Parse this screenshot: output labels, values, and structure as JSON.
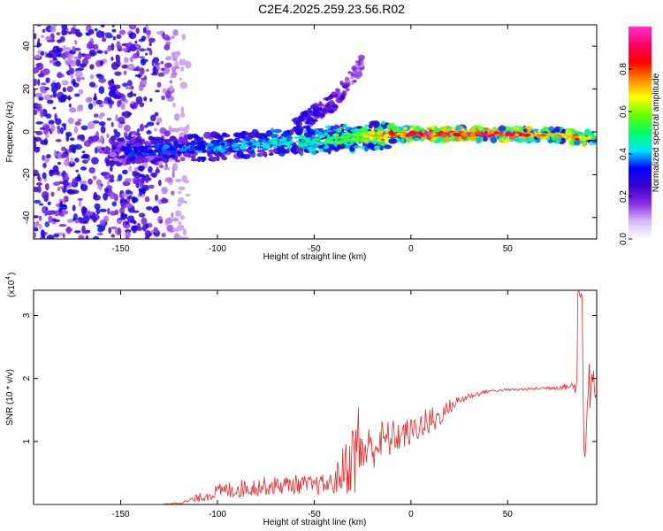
{
  "title": "C2E4.2025.259.23.56.R02",
  "chart_data": [
    {
      "type": "heatmap",
      "xlabel": "Height of straight line (km)",
      "ylabel": "Frequency (Hz)",
      "xlim": [
        -195,
        96
      ],
      "ylim": [
        -50,
        50
      ],
      "xticks": [
        -150,
        -100,
        -50,
        0,
        50
      ],
      "yticks": [
        -40,
        -20,
        0,
        20,
        40
      ],
      "colorbar": {
        "label": "Normalized spectral amplitude",
        "range": [
          0,
          1
        ],
        "ticks": [
          0.0,
          0.2,
          0.4,
          0.6,
          0.8
        ],
        "colormap": [
          "#ffffff",
          "#d8b8f8",
          "#8a2be2",
          "#3a00d0",
          "#0000ff",
          "#00e5ff",
          "#00ff66",
          "#66ff00",
          "#ffff00",
          "#ff8800",
          "#ff0000",
          "#ff0066",
          "#ff33cc"
        ]
      },
      "features": [
        {
          "name": "main-band",
          "x": [
            -150,
            -100,
            -50,
            -20,
            0,
            25,
            50,
            75,
            90,
            95
          ],
          "y": [
            -9,
            -7,
            -4,
            -2,
            -1,
            -1,
            -1,
            -1.5,
            -3,
            -2
          ],
          "amplitude": [
            0.35,
            0.4,
            0.5,
            0.7,
            0.95,
            0.95,
            0.95,
            0.7,
            0.85,
            0.5
          ]
        },
        {
          "name": "upper-streak",
          "x": [
            -60,
            -40,
            -25
          ],
          "y": [
            2,
            14,
            32
          ],
          "amplitude": [
            0.3,
            0.25,
            0.15
          ]
        },
        {
          "name": "noise-region",
          "x": [
            -195,
            -125
          ],
          "y": [
            -50,
            50
          ],
          "amplitude": [
            0.1,
            0.35
          ]
        }
      ]
    },
    {
      "type": "line",
      "xlabel": "Height of straight line (km)",
      "ylabel": "SNR (10 * v/v)",
      "yunit_label": "(x10",
      "yunit_exp": "4",
      "yunit_close": ")",
      "xlim": [
        -195,
        96
      ],
      "ylim": [
        0,
        3.4
      ],
      "xticks": [
        -150,
        -100,
        -50,
        0,
        50
      ],
      "yticks": [
        1,
        2,
        3
      ],
      "color": "#ee2222",
      "envelope": {
        "x": [
          -195,
          -130,
          -118,
          -110,
          -100,
          -90,
          -80,
          -70,
          -60,
          -50,
          -40,
          -35,
          -30,
          -27,
          -25,
          -20,
          -15,
          -10,
          -5,
          0,
          5,
          10,
          15,
          20,
          25,
          30,
          40,
          50,
          60,
          70,
          80,
          85,
          88,
          90,
          92,
          94,
          96
        ],
        "mean": [
          0.0,
          0.0,
          0.03,
          0.1,
          0.2,
          0.25,
          0.28,
          0.3,
          0.32,
          0.3,
          0.33,
          0.55,
          0.75,
          0.9,
          0.85,
          0.9,
          1.0,
          1.05,
          1.1,
          1.15,
          1.25,
          1.3,
          1.4,
          1.55,
          1.65,
          1.72,
          1.8,
          1.82,
          1.83,
          1.85,
          1.87,
          1.88,
          1.85,
          1.8,
          1.7,
          1.75,
          1.8
        ],
        "amp": [
          0.0,
          0.0,
          0.02,
          0.07,
          0.12,
          0.15,
          0.15,
          0.15,
          0.15,
          0.15,
          0.18,
          0.4,
          0.6,
          0.8,
          0.45,
          0.35,
          0.35,
          0.3,
          0.25,
          0.22,
          0.2,
          0.3,
          0.15,
          0.12,
          0.08,
          0.05,
          0.03,
          0.02,
          0.02,
          0.03,
          0.05,
          0.12,
          0.9,
          0.8,
          0.6,
          0.4,
          0.3
        ]
      }
    }
  ]
}
